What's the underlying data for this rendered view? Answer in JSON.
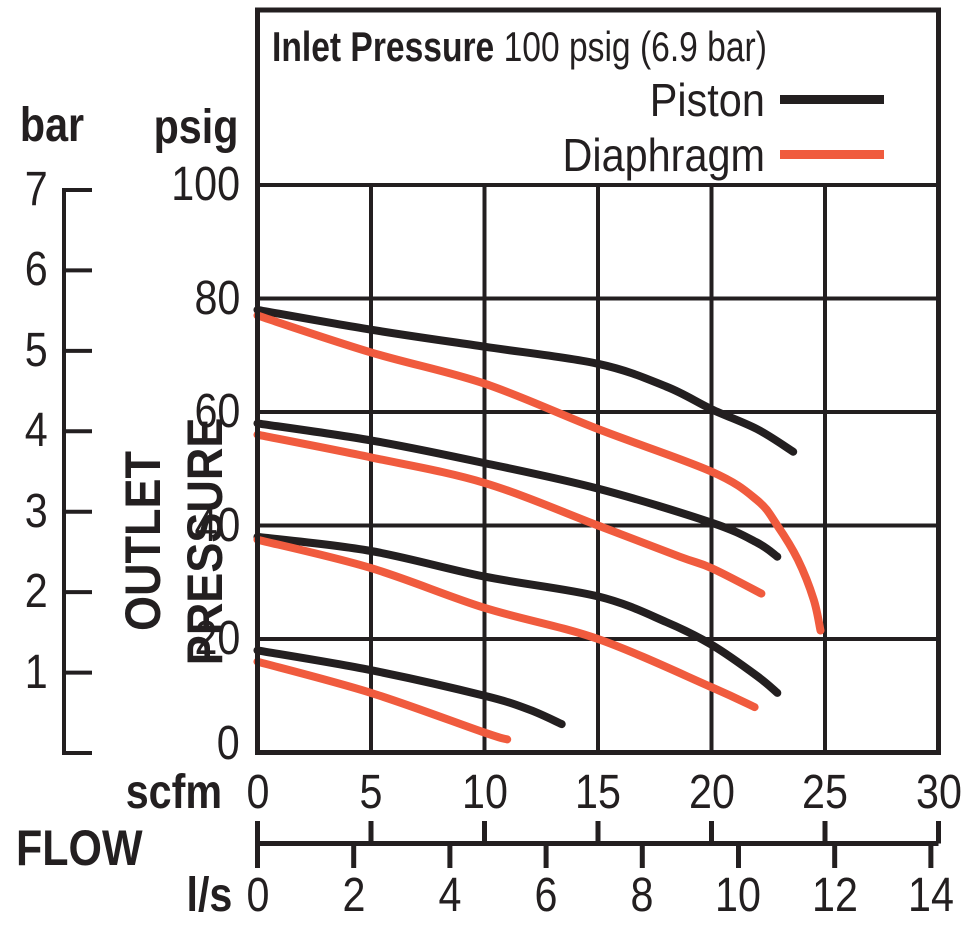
{
  "figure": {
    "legend_title_bold": "Inlet Pressure",
    "legend_title_rest": " 100 psig (6.9 bar)"
  },
  "chart_data": {
    "type": "line",
    "title": "Inlet Pressure 100 psig (6.9 bar)",
    "inlet_pressure": {
      "psig": 100,
      "bar": 6.9
    },
    "grid": true,
    "legend_position": "top-inside",
    "x_axis": {
      "label": "FLOW",
      "scales": [
        {
          "unit": "scfm",
          "ticks": [
            0,
            5,
            10,
            15,
            20,
            25,
            30
          ],
          "range": [
            0,
            30
          ]
        },
        {
          "unit": "l/s",
          "ticks": [
            0,
            2,
            4,
            6,
            8,
            10,
            12,
            14
          ],
          "range": [
            0,
            14.16
          ]
        }
      ]
    },
    "y_axis": {
      "label": "OUTLET PRESSURE",
      "scales": [
        {
          "unit": "psig",
          "ticks": [
            100,
            80,
            60,
            40,
            20,
            0
          ],
          "range": [
            0,
            100
          ]
        },
        {
          "unit": "bar",
          "ticks": [
            7,
            6,
            5,
            4,
            3,
            2,
            1
          ],
          "range": [
            0,
            7
          ]
        }
      ]
    },
    "series": [
      {
        "name": "Piston",
        "color": "#231f20",
        "units": {
          "x": "scfm",
          "y": "psig"
        },
        "curves": [
          {
            "set_psig": 78,
            "points": [
              [
                0,
                78
              ],
              [
                5,
                74.5
              ],
              [
                10,
                71.5
              ],
              [
                15,
                68.5
              ],
              [
                18,
                64.5
              ],
              [
                20,
                60.5
              ],
              [
                22,
                57
              ],
              [
                23.6,
                53
              ]
            ]
          },
          {
            "set_psig": 58,
            "points": [
              [
                0,
                58
              ],
              [
                5,
                55
              ],
              [
                10,
                51
              ],
              [
                15,
                46.5
              ],
              [
                20,
                40.5
              ],
              [
                22,
                37
              ],
              [
                22.9,
                34.5
              ]
            ]
          },
          {
            "set_psig": 38,
            "points": [
              [
                0,
                38
              ],
              [
                5,
                35.5
              ],
              [
                10,
                31
              ],
              [
                15,
                27.5
              ],
              [
                18,
                23
              ],
              [
                20,
                19
              ],
              [
                22,
                13.5
              ],
              [
                22.9,
                10.5
              ]
            ]
          },
          {
            "set_psig": 18,
            "points": [
              [
                0,
                18
              ],
              [
                5,
                14.5
              ],
              [
                10,
                10
              ],
              [
                12,
                7.5
              ],
              [
                13.4,
                5
              ]
            ]
          }
        ]
      },
      {
        "name": "Diaphragm",
        "color": "#f05b3e",
        "units": {
          "x": "scfm",
          "y": "psig"
        },
        "curves": [
          {
            "set_psig": 77,
            "points": [
              [
                0,
                77
              ],
              [
                5,
                70.5
              ],
              [
                10,
                65
              ],
              [
                15,
                57
              ],
              [
                20,
                49.5
              ],
              [
                22,
                44.5
              ],
              [
                22.9,
                40
              ],
              [
                23.8,
                34
              ],
              [
                24.5,
                27
              ],
              [
                24.8,
                21.5
              ]
            ]
          },
          {
            "set_psig": 56,
            "points": [
              [
                0,
                56
              ],
              [
                5,
                52
              ],
              [
                10,
                47.5
              ],
              [
                15,
                40
              ],
              [
                18.6,
                34.5
              ],
              [
                20,
                32.5
              ],
              [
                22.2,
                28
              ]
            ]
          },
          {
            "set_psig": 37,
            "points": [
              [
                0,
                37.5
              ],
              [
                5,
                32.5
              ],
              [
                10,
                25.5
              ],
              [
                15,
                20
              ],
              [
                20,
                11.5
              ],
              [
                21.9,
                8
              ]
            ]
          },
          {
            "set_psig": 16,
            "points": [
              [
                0,
                16
              ],
              [
                5,
                10.5
              ],
              [
                10,
                3.5
              ],
              [
                11,
                2.3
              ]
            ]
          }
        ]
      }
    ]
  }
}
